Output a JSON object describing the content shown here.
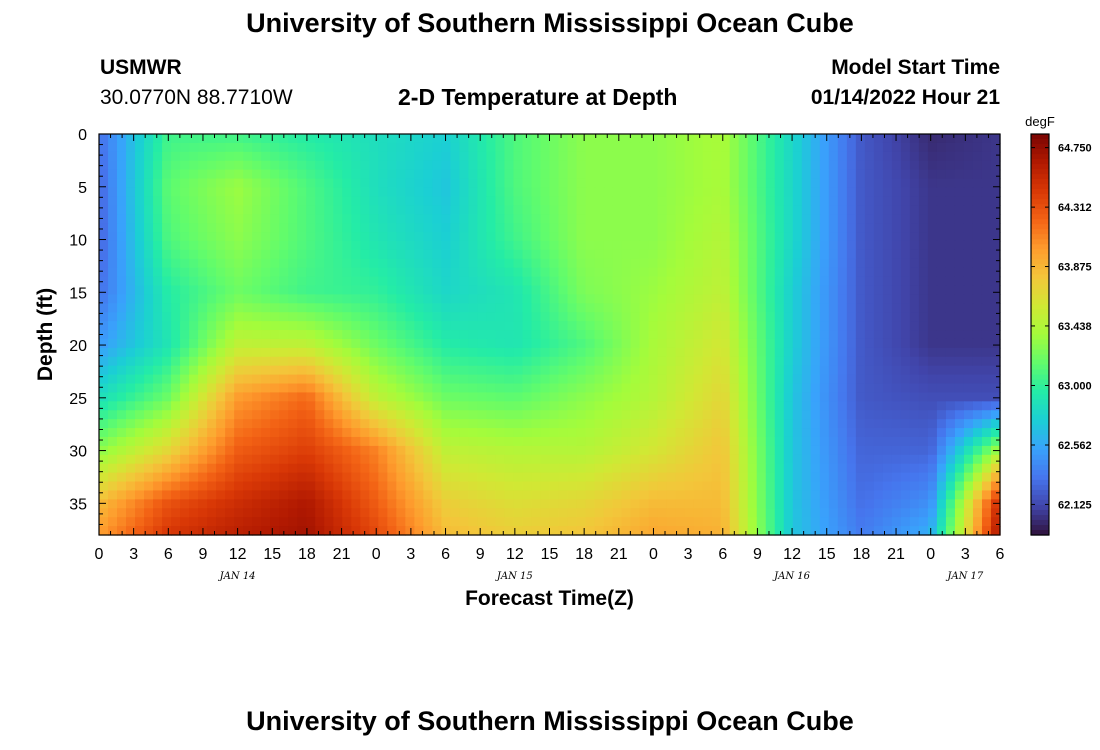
{
  "header": {
    "title": "University of Southern Mississippi Ocean Cube",
    "station": "USMWR",
    "coordinates": "30.0770N  88.7710W",
    "subtitle": "2-D Temperature at Depth",
    "model_start_label": "Model Start Time",
    "model_start_value": "01/14/2022 Hour 21",
    "repeat_title": "University of Southern Mississippi Ocean Cube"
  },
  "colors": {
    "colormap": [
      "#30123b",
      "#4145ab",
      "#4675ed",
      "#39a2fc",
      "#1bcfd4",
      "#24eca6",
      "#61fc6c",
      "#a4fc3b",
      "#d1e834",
      "#f3c63a",
      "#fe9b2d",
      "#f36315",
      "#d93806",
      "#b11901",
      "#7a0402"
    ]
  },
  "chart_data": {
    "type": "heatmap",
    "title": "2-D Temperature at Depth",
    "xlabel": "Forecast Time(Z)",
    "ylabel": "Depth (ft)",
    "x_range_hours_from_jan14_00z": [
      0,
      78
    ],
    "x_tick_step_hours": 3,
    "x_tick_labels": [
      "0",
      "3",
      "6",
      "9",
      "12",
      "15",
      "18",
      "21",
      "0",
      "3",
      "6",
      "9",
      "12",
      "15",
      "18",
      "21",
      "0",
      "3",
      "6",
      "9",
      "12",
      "15",
      "18",
      "21",
      "0",
      "3",
      "6"
    ],
    "date_labels": [
      {
        "label": "JAN 14",
        "hour": 12
      },
      {
        "label": "JAN 15",
        "hour": 36
      },
      {
        "label": "JAN 16",
        "hour": 60
      },
      {
        "label": "JAN 17",
        "hour": 75
      }
    ],
    "ylim": [
      0,
      38
    ],
    "y_ticks": [
      0,
      5,
      10,
      15,
      20,
      25,
      30,
      35
    ],
    "y_tick_labels": [
      "0",
      "5",
      "10",
      "15",
      "20",
      "25",
      "30",
      "35"
    ],
    "time_hours": [
      0,
      6,
      12,
      18,
      24,
      30,
      36,
      42,
      48,
      54,
      60,
      66,
      72,
      78
    ],
    "depth_ft": [
      0,
      5,
      10,
      15,
      20,
      25,
      30,
      35,
      38
    ],
    "temperature_degF": [
      [
        62.3,
        63.05,
        63.05,
        62.95,
        62.85,
        62.75,
        63.1,
        63.3,
        63.3,
        63.4,
        62.8,
        62.2,
        62.0,
        62.05
      ],
      [
        62.25,
        63.15,
        63.35,
        63.1,
        62.85,
        62.7,
        63.1,
        63.3,
        63.3,
        63.4,
        62.8,
        62.2,
        62.05,
        62.05
      ],
      [
        62.25,
        63.1,
        63.3,
        63.1,
        62.9,
        62.75,
        63.05,
        63.3,
        63.3,
        63.45,
        62.8,
        62.2,
        62.05,
        62.05
      ],
      [
        62.3,
        62.95,
        63.2,
        63.05,
        63.0,
        62.8,
        62.9,
        63.25,
        63.35,
        63.5,
        62.75,
        62.2,
        62.05,
        62.05
      ],
      [
        62.5,
        62.9,
        63.5,
        63.5,
        63.2,
        62.95,
        62.9,
        63.1,
        63.4,
        63.6,
        62.75,
        62.2,
        62.05,
        62.05
      ],
      [
        62.85,
        63.2,
        64.0,
        64.2,
        63.5,
        63.2,
        63.15,
        63.3,
        63.45,
        63.7,
        62.7,
        62.2,
        62.15,
        62.15
      ],
      [
        63.3,
        63.7,
        64.25,
        64.4,
        64.1,
        63.5,
        63.45,
        63.45,
        63.6,
        63.8,
        62.7,
        62.25,
        62.25,
        63.4
      ],
      [
        63.85,
        64.3,
        64.5,
        64.65,
        64.25,
        63.75,
        63.65,
        63.7,
        63.85,
        63.85,
        62.7,
        62.3,
        62.45,
        64.55
      ],
      [
        64.0,
        64.45,
        64.6,
        64.7,
        64.35,
        63.85,
        63.75,
        63.8,
        63.95,
        63.9,
        62.7,
        62.35,
        62.6,
        64.7
      ]
    ],
    "colorbar": {
      "unit": "degF",
      "min": 61.9,
      "max": 64.85,
      "tick_values": [
        64.75,
        64.312,
        63.875,
        63.438,
        63.0,
        62.562,
        62.125
      ],
      "tick_labels": [
        "64.750",
        "64.312",
        "63.875",
        "63.438",
        "63.000",
        "62.562",
        "62.125"
      ]
    }
  }
}
